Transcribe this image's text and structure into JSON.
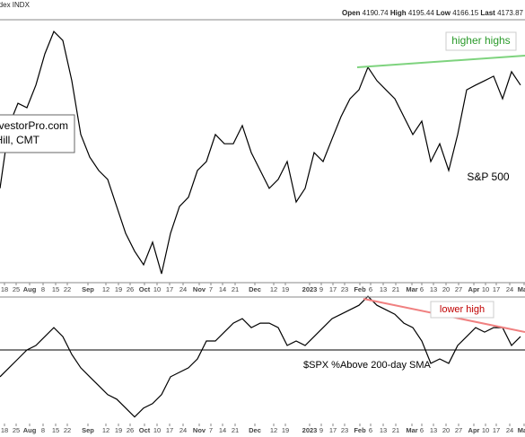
{
  "chart_data": [
    {
      "type": "line",
      "header": "Index INDX",
      "quote": [
        {
          "label": "Open",
          "value": 4190.74
        },
        {
          "label": "High",
          "value": 4195.44
        },
        {
          "label": "Low",
          "value": 4166.15
        },
        {
          "label": "Last",
          "value": 4173.87
        }
      ],
      "watermark": [
        "TrendInvestorPro.com",
        "Arthur Hill, CMT"
      ],
      "label": "S&P 500",
      "annotation": "higher highs",
      "color": "#000000",
      "x": [
        0,
        1,
        2,
        3,
        4,
        5,
        6,
        7,
        8,
        9,
        10,
        11,
        12,
        13,
        14,
        15,
        16,
        17,
        18,
        19,
        20,
        21,
        22,
        23,
        24,
        25,
        26,
        27,
        28,
        29,
        30,
        31,
        32,
        33,
        34,
        35,
        36,
        37,
        38,
        39,
        40,
        41,
        42,
        43,
        44,
        45,
        46,
        47,
        48,
        49,
        50,
        51,
        52,
        53,
        54,
        55,
        56,
        57,
        58
      ],
      "values": [
        3767,
        3978,
        4053,
        4038,
        4114,
        4219,
        4294,
        4264,
        4129,
        3948,
        3872,
        3827,
        3797,
        3706,
        3616,
        3556,
        3510,
        3586,
        3480,
        3616,
        3706,
        3737,
        3827,
        3857,
        3948,
        3917,
        3917,
        3978,
        3887,
        3827,
        3767,
        3797,
        3857,
        3721,
        3767,
        3887,
        3857,
        3933,
        4008,
        4068,
        4098,
        4174,
        4129,
        4098,
        4068,
        4008,
        3948,
        3993,
        3857,
        3917,
        3827,
        3948,
        4098,
        4114,
        4129,
        4144,
        4068,
        4159,
        4114
      ],
      "xlim": [
        0,
        58.5
      ],
      "ylim": [
        3450,
        4400
      ],
      "xticks": [
        {
          "value": 0.5,
          "label": "18"
        },
        {
          "value": 1.8,
          "label": "25"
        },
        {
          "value": 3.3,
          "label": "Aug"
        },
        {
          "value": 4.8,
          "label": "8"
        },
        {
          "value": 6.2,
          "label": "15"
        },
        {
          "value": 7.5,
          "label": "22"
        },
        {
          "value": 9.8,
          "label": "Sep"
        },
        {
          "value": 11.8,
          "label": "12"
        },
        {
          "value": 13.2,
          "label": "19"
        },
        {
          "value": 14.5,
          "label": "26"
        },
        {
          "value": 16.1,
          "label": "Oct"
        },
        {
          "value": 17.5,
          "label": "10"
        },
        {
          "value": 18.9,
          "label": "17"
        },
        {
          "value": 20.4,
          "label": "24"
        },
        {
          "value": 22.2,
          "label": "Nov"
        },
        {
          "value": 23.5,
          "label": "7"
        },
        {
          "value": 24.8,
          "label": "14"
        },
        {
          "value": 26.2,
          "label": "21"
        },
        {
          "value": 28.4,
          "label": "Dec"
        },
        {
          "value": 30.5,
          "label": "12"
        },
        {
          "value": 31.8,
          "label": "19"
        },
        {
          "value": 34.5,
          "label": "2023"
        },
        {
          "value": 35.8,
          "label": "9"
        },
        {
          "value": 37.1,
          "label": "17"
        },
        {
          "value": 38.4,
          "label": "23"
        },
        {
          "value": 40.1,
          "label": "Feb"
        },
        {
          "value": 41.3,
          "label": "6"
        },
        {
          "value": 42.7,
          "label": "13"
        },
        {
          "value": 44.1,
          "label": "21"
        },
        {
          "value": 45.9,
          "label": "Mar"
        },
        {
          "value": 47.0,
          "label": "6"
        },
        {
          "value": 48.3,
          "label": "13"
        },
        {
          "value": 49.7,
          "label": "20"
        },
        {
          "value": 51.1,
          "label": "27"
        },
        {
          "value": 52.8,
          "label": "Apr"
        },
        {
          "value": 54.1,
          "label": "10"
        },
        {
          "value": 55.3,
          "label": "17"
        },
        {
          "value": 56.8,
          "label": "24"
        },
        {
          "value": 58.4,
          "label": "May"
        }
      ]
    },
    {
      "type": "line",
      "label": "$SPX %Above 200-day SMA",
      "annotation": "lower high",
      "color": "#000000",
      "hline": 50,
      "x": [
        0,
        1,
        2,
        3,
        4,
        5,
        6,
        7,
        8,
        9,
        10,
        11,
        12,
        13,
        14,
        15,
        16,
        17,
        18,
        19,
        20,
        21,
        22,
        23,
        24,
        25,
        26,
        27,
        28,
        29,
        30,
        31,
        32,
        33,
        34,
        35,
        36,
        37,
        38,
        39,
        40,
        41,
        42,
        43,
        44,
        45,
        46,
        47,
        48,
        49,
        50,
        51,
        52,
        53,
        54,
        55,
        56,
        57,
        58
      ],
      "values": [
        32,
        38,
        44,
        50,
        53,
        59,
        65,
        59,
        47,
        38,
        32,
        26,
        20,
        17,
        11,
        5,
        11,
        14,
        20,
        32,
        35,
        38,
        44,
        56,
        56,
        62,
        68,
        71,
        65,
        68,
        68,
        65,
        53,
        56,
        53,
        59,
        65,
        71,
        74,
        77,
        80,
        86,
        80,
        77,
        74,
        68,
        65,
        56,
        41,
        44,
        41,
        53,
        59,
        65,
        62,
        65,
        65,
        53,
        59
      ],
      "xlim": [
        0,
        58.5
      ],
      "ylim": [
        0,
        100
      ],
      "xticks": [
        {
          "value": 0.5,
          "label": "18"
        },
        {
          "value": 1.8,
          "label": "25"
        },
        {
          "value": 3.3,
          "label": "Aug"
        },
        {
          "value": 4.8,
          "label": "8"
        },
        {
          "value": 6.2,
          "label": "15"
        },
        {
          "value": 7.5,
          "label": "22"
        },
        {
          "value": 9.8,
          "label": "Sep"
        },
        {
          "value": 11.8,
          "label": "12"
        },
        {
          "value": 13.2,
          "label": "19"
        },
        {
          "value": 14.5,
          "label": "26"
        },
        {
          "value": 16.1,
          "label": "Oct"
        },
        {
          "value": 17.5,
          "label": "10"
        },
        {
          "value": 18.9,
          "label": "17"
        },
        {
          "value": 20.4,
          "label": "24"
        },
        {
          "value": 22.2,
          "label": "Nov"
        },
        {
          "value": 23.5,
          "label": "7"
        },
        {
          "value": 24.8,
          "label": "14"
        },
        {
          "value": 26.2,
          "label": "21"
        },
        {
          "value": 28.4,
          "label": "Dec"
        },
        {
          "value": 30.5,
          "label": "12"
        },
        {
          "value": 31.8,
          "label": "19"
        },
        {
          "value": 34.5,
          "label": "2023"
        },
        {
          "value": 35.8,
          "label": "9"
        },
        {
          "value": 37.1,
          "label": "17"
        },
        {
          "value": 38.4,
          "label": "23"
        },
        {
          "value": 40.1,
          "label": "Feb"
        },
        {
          "value": 41.3,
          "label": "6"
        },
        {
          "value": 42.7,
          "label": "13"
        },
        {
          "value": 44.1,
          "label": "21"
        },
        {
          "value": 45.9,
          "label": "Mar"
        },
        {
          "value": 47.0,
          "label": "6"
        },
        {
          "value": 48.3,
          "label": "13"
        },
        {
          "value": 49.7,
          "label": "20"
        },
        {
          "value": 51.1,
          "label": "27"
        },
        {
          "value": 52.8,
          "label": "Apr"
        },
        {
          "value": 54.1,
          "label": "10"
        },
        {
          "value": 55.3,
          "label": "17"
        },
        {
          "value": 56.8,
          "label": "24"
        },
        {
          "value": 58.4,
          "label": "May"
        }
      ]
    }
  ]
}
